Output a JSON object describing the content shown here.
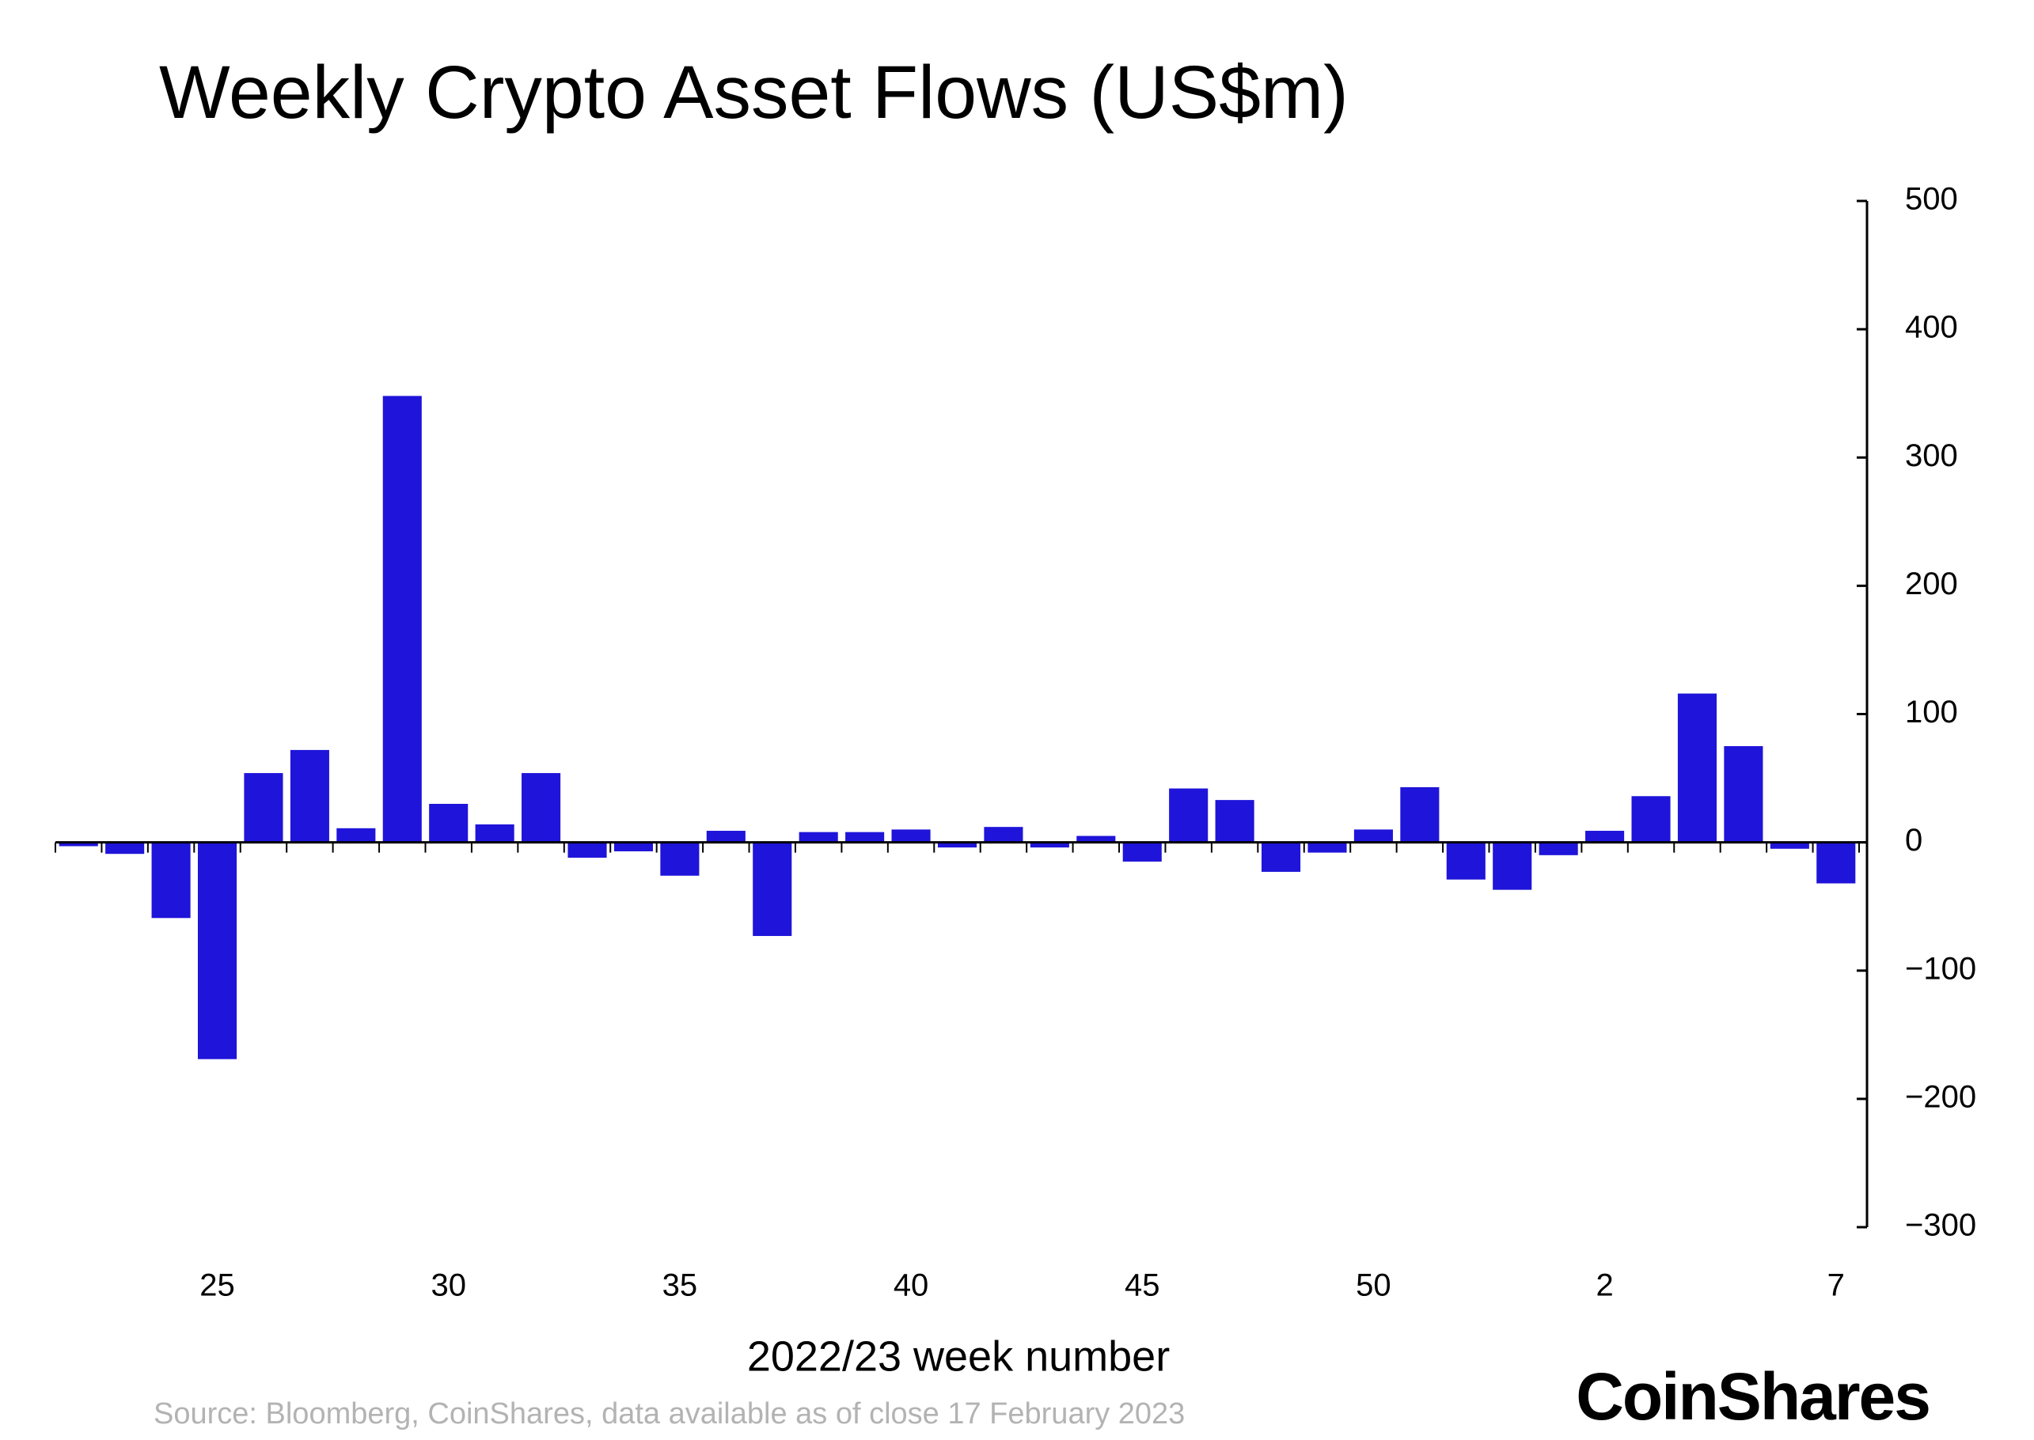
{
  "chart_data": {
    "type": "bar",
    "title": "Weekly Crypto Asset Flows (US$m)",
    "x_label": "2022/23 week number",
    "source": "Source: Bloomberg, CoinShares, data available as of close 17 February 2023",
    "logo": "CoinShares",
    "categories": [
      null,
      null,
      null,
      "25",
      null,
      null,
      null,
      null,
      "30",
      null,
      null,
      null,
      null,
      "35",
      null,
      null,
      null,
      null,
      "40",
      null,
      null,
      null,
      null,
      "45",
      null,
      null,
      null,
      null,
      "50",
      null,
      null,
      null,
      null,
      "2",
      null,
      null,
      null,
      null,
      "7"
    ],
    "values": [
      -3,
      -9,
      -59,
      -169,
      54,
      72,
      11,
      348,
      30,
      14,
      54,
      -12,
      -7,
      -26,
      9,
      -73,
      8,
      8,
      10,
      -4,
      12,
      -4,
      5,
      -15,
      42,
      33,
      -23,
      -8,
      10,
      43,
      -29,
      -37,
      -10,
      9,
      36,
      116,
      75,
      -5,
      -32
    ],
    "color": "#1f14d9",
    "ylim": [
      -300,
      500
    ],
    "yticks": [
      {
        "value": -300,
        "label": "−300"
      },
      {
        "value": -200,
        "label": "−200"
      },
      {
        "value": -100,
        "label": "−100"
      },
      0,
      100,
      200,
      300,
      400,
      500
    ],
    "y_axis_side": "right",
    "grid": false
  }
}
